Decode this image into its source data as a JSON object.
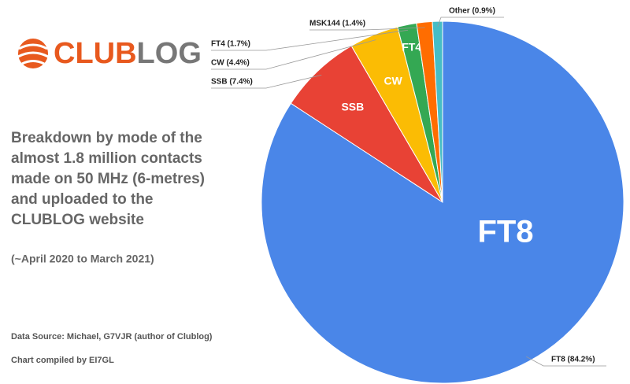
{
  "chart_data": {
    "type": "pie",
    "logo": [
      "CLUB",
      "LOG"
    ],
    "description": [
      "Breakdown by mode of the",
      "almost 1.8 million contacts",
      "made on 50 MHz (6-metres)",
      "and uploaded to the",
      "CLUBLOG website"
    ],
    "period": "(~April 2020 to March 2021)",
    "source": "Data Source: Michael, G7VJR (author of Clublog)",
    "credit": "Chart compiled by EI7GL",
    "categories": [
      "FT8",
      "SSB",
      "CW",
      "FT4",
      "MSK144",
      "Other"
    ],
    "values": [
      84.2,
      7.4,
      4.4,
      1.7,
      1.4,
      0.9
    ],
    "value_labels": [
      "FT8 (84.2%)",
      "SSB (7.4%)",
      "CW (4.4%)",
      "FT4 (1.7%)",
      "MSK144 (1.4%)",
      "Other (0.9%)"
    ],
    "colors": [
      "#4a86e8",
      "#e84235",
      "#fbbc04",
      "#34a853",
      "#ff6d01",
      "#46bdc6"
    ]
  }
}
